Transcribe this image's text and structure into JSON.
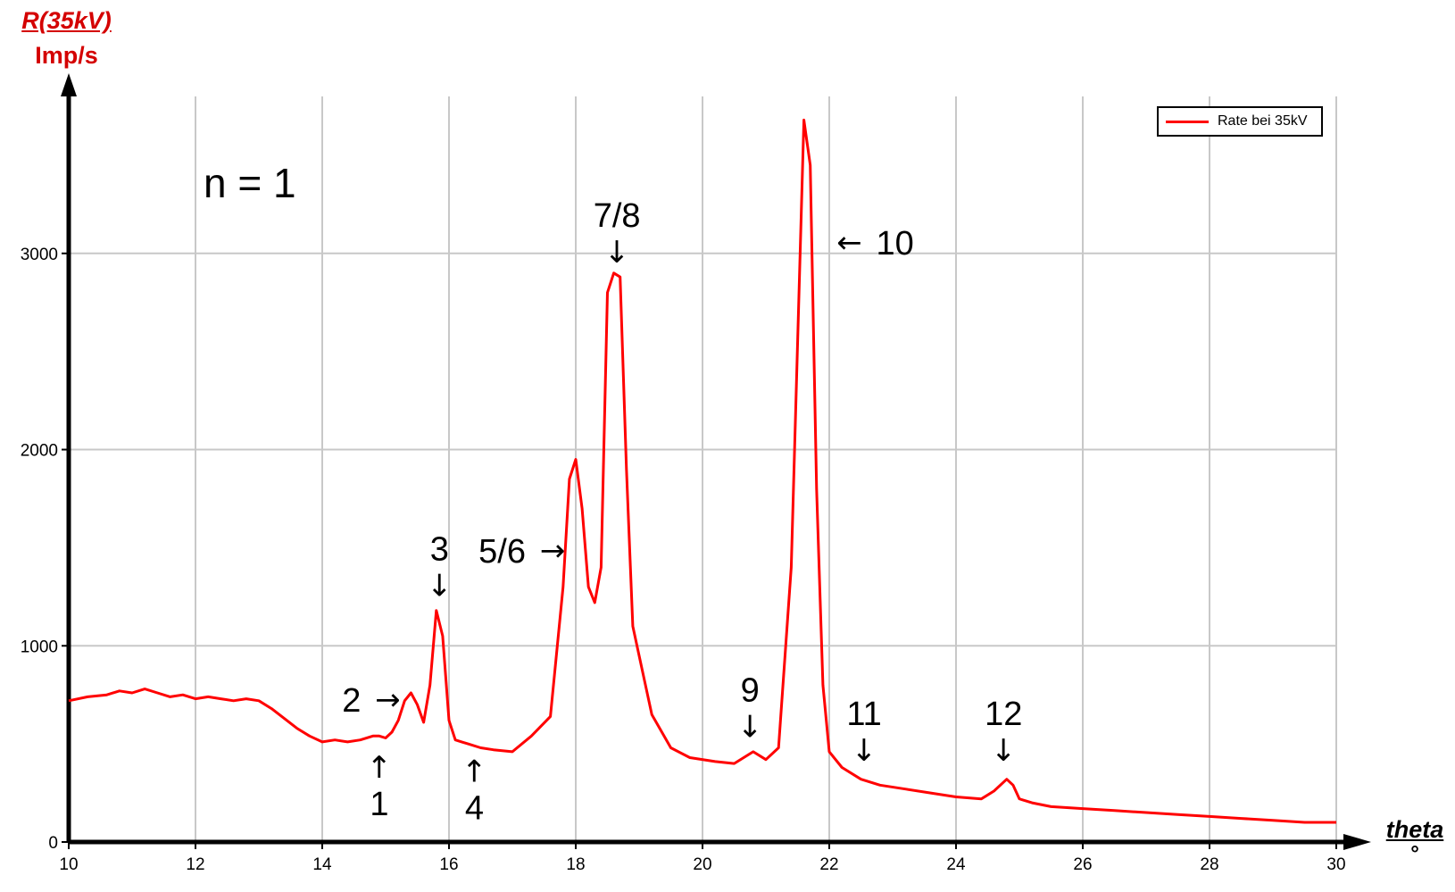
{
  "chart_data": {
    "type": "line",
    "ylabel_num": "R(35kV)",
    "ylabel_den": "Imp/s",
    "xlabel_num": "theta",
    "xlabel_den": "°",
    "xlim": [
      10,
      30
    ],
    "ylim": [
      0,
      3800
    ],
    "x_ticks": [
      10,
      12,
      14,
      16,
      18,
      20,
      22,
      24,
      26,
      28,
      30
    ],
    "y_ticks": [
      0,
      1000,
      2000,
      3000
    ],
    "grid": true,
    "legend_position": "top-right",
    "series": [
      {
        "name": "Rate bei 35kV",
        "color": "#ff0000",
        "x": [
          10.0,
          10.3,
          10.6,
          10.8,
          11.0,
          11.2,
          11.4,
          11.6,
          11.8,
          12.0,
          12.2,
          12.4,
          12.6,
          12.8,
          13.0,
          13.2,
          13.4,
          13.6,
          13.8,
          14.0,
          14.2,
          14.4,
          14.6,
          14.8,
          14.9,
          15.0,
          15.1,
          15.2,
          15.3,
          15.4,
          15.5,
          15.6,
          15.7,
          15.8,
          15.9,
          16.0,
          16.1,
          16.2,
          16.3,
          16.5,
          16.7,
          17.0,
          17.3,
          17.6,
          17.8,
          17.9,
          18.0,
          18.1,
          18.2,
          18.3,
          18.4,
          18.5,
          18.6,
          18.7,
          18.8,
          18.9,
          19.0,
          19.2,
          19.5,
          19.8,
          20.2,
          20.5,
          20.8,
          21.0,
          21.2,
          21.4,
          21.6,
          21.7,
          21.8,
          21.9,
          22.0,
          22.2,
          22.5,
          22.8,
          23.2,
          23.6,
          24.0,
          24.4,
          24.6,
          24.8,
          24.9,
          25.0,
          25.2,
          25.5,
          26.0,
          26.5,
          27.0,
          27.5,
          28.0,
          28.5,
          29.0,
          29.5,
          30.0
        ],
        "y": [
          720,
          740,
          750,
          770,
          760,
          780,
          760,
          740,
          750,
          730,
          740,
          730,
          720,
          730,
          720,
          680,
          630,
          580,
          540,
          510,
          520,
          510,
          520,
          540,
          540,
          530,
          560,
          620,
          720,
          760,
          700,
          610,
          800,
          1180,
          1050,
          620,
          520,
          510,
          500,
          480,
          470,
          460,
          540,
          640,
          1300,
          1850,
          1950,
          1700,
          1300,
          1220,
          1400,
          2800,
          2900,
          2880,
          1900,
          1100,
          950,
          650,
          480,
          430,
          410,
          400,
          460,
          420,
          480,
          1400,
          3680,
          3450,
          1800,
          800,
          460,
          380,
          320,
          290,
          270,
          250,
          230,
          220,
          260,
          320,
          290,
          220,
          200,
          180,
          170,
          160,
          150,
          140,
          130,
          120,
          110,
          100,
          100
        ]
      }
    ],
    "annotations": [
      {
        "label": "1",
        "arrow": "↑",
        "x": 14.9,
        "y": 500,
        "dir": "up"
      },
      {
        "label": "2",
        "arrow": "→",
        "x": 15.4,
        "y": 720,
        "dir": "right"
      },
      {
        "label": "3",
        "arrow": "↓",
        "x": 15.85,
        "y": 1200,
        "dir": "down"
      },
      {
        "label": "4",
        "arrow": "↑",
        "x": 16.4,
        "y": 480,
        "dir": "up"
      },
      {
        "label": "5/6",
        "arrow": "→",
        "x": 18.0,
        "y": 1480,
        "dir": "right"
      },
      {
        "label": "7/8",
        "arrow": "↓",
        "x": 18.65,
        "y": 2900,
        "dir": "down"
      },
      {
        "label": "9",
        "arrow": "↓",
        "x": 20.75,
        "y": 480,
        "dir": "down"
      },
      {
        "label": "10",
        "arrow": "←",
        "x": 21.95,
        "y": 3050,
        "dir": "left"
      },
      {
        "label": "11",
        "arrow": "↓",
        "x": 22.55,
        "y": 360,
        "dir": "down"
      },
      {
        "label": "12",
        "arrow": "↓",
        "x": 24.75,
        "y": 360,
        "dir": "down"
      }
    ],
    "note": "n = 1"
  }
}
